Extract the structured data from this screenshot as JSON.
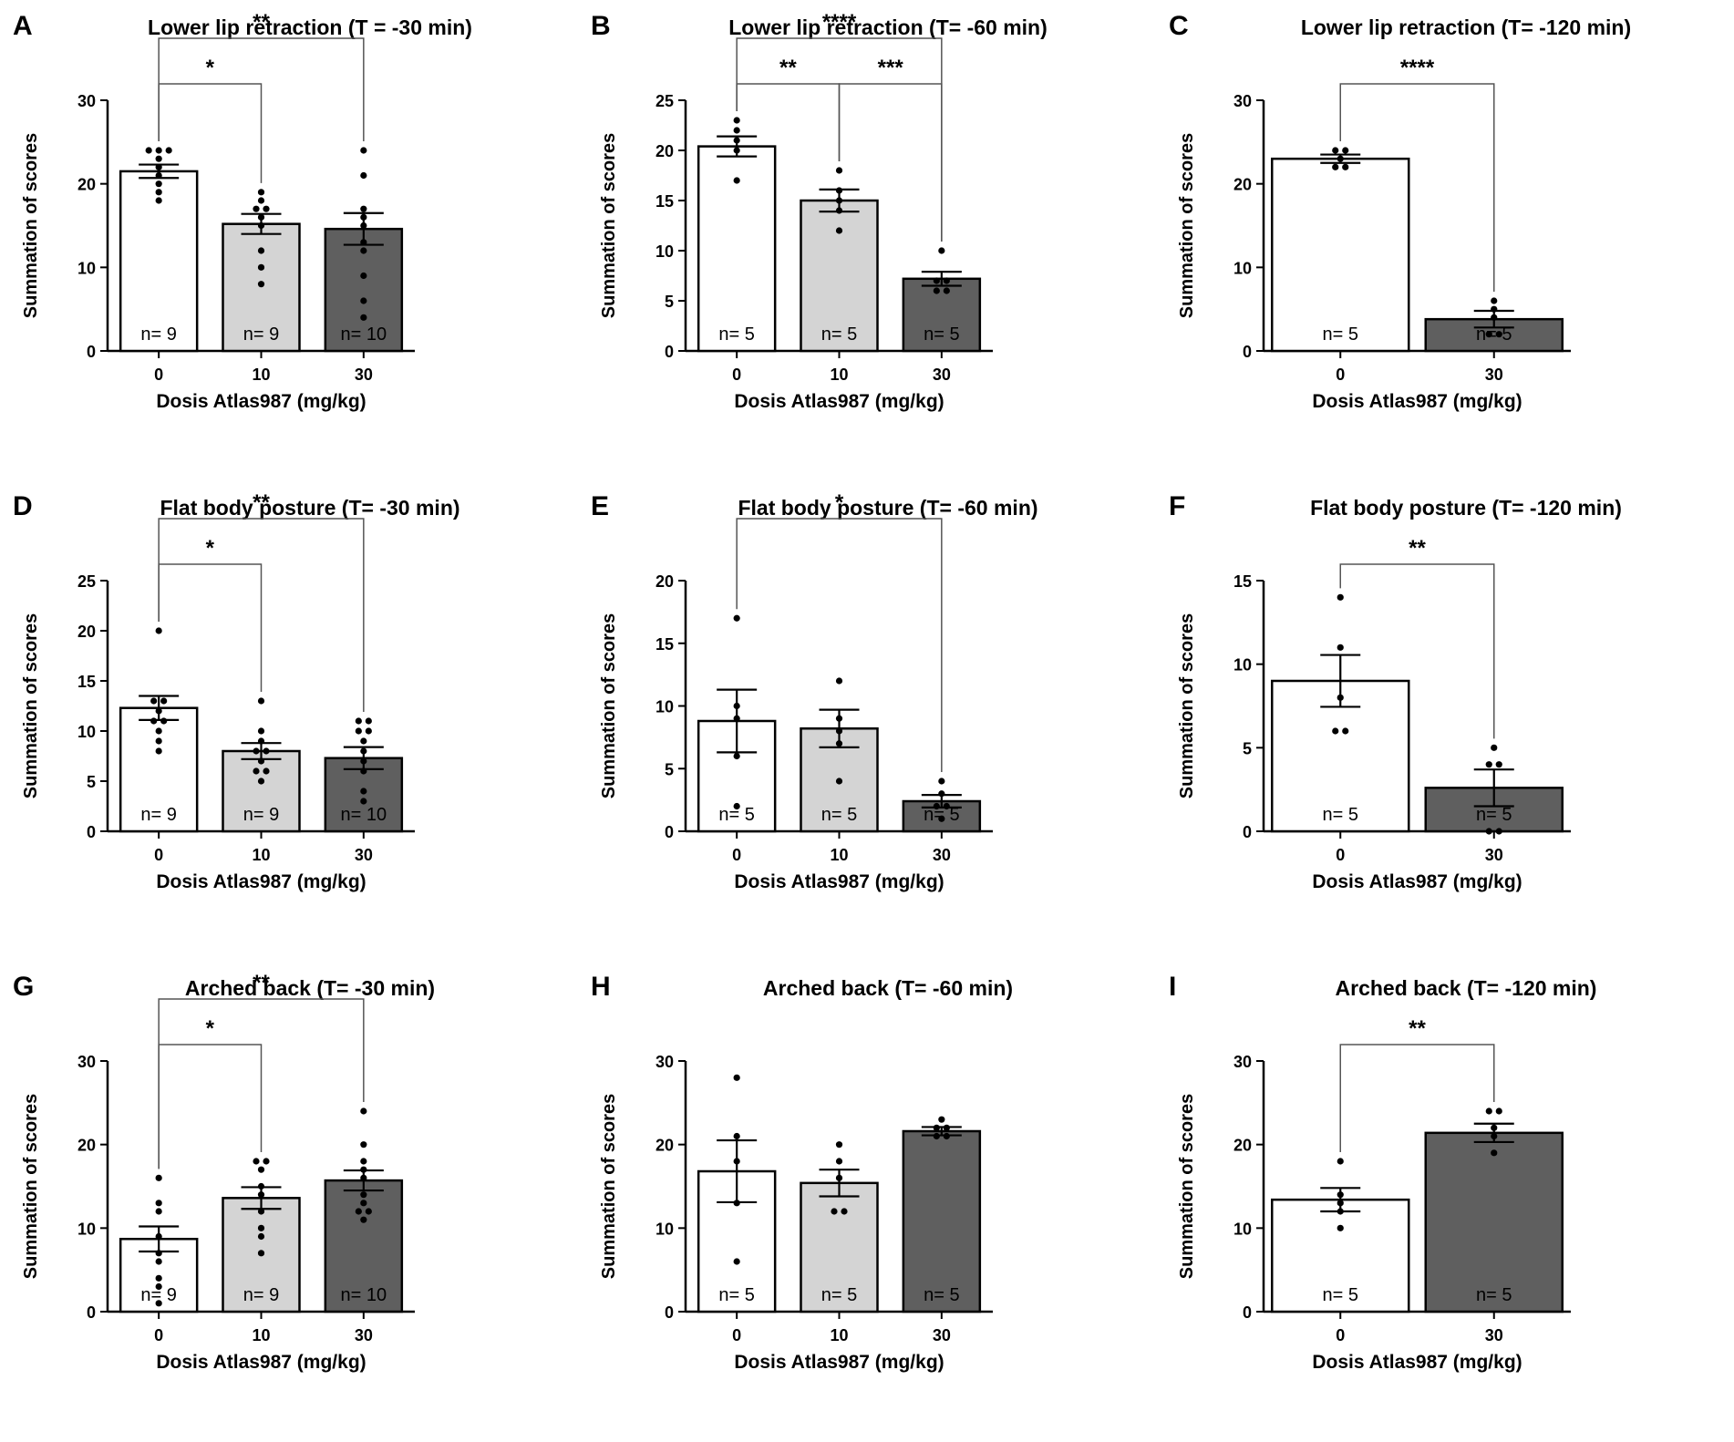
{
  "figure": {
    "colors": {
      "dose_0": "#ffffff",
      "dose_10": "#d4d4d4",
      "dose_30": "#5f5f5f",
      "stroke": "#000000"
    }
  },
  "chart_data": [
    {
      "type": "bar",
      "panel": "A",
      "title": "Lower lip retraction (T = -30 min)",
      "xlabel": "Dosis Atlas987 (mg/kg)",
      "ylabel": "Summation of scores",
      "ylim": [
        0,
        30
      ],
      "yticks": [
        "0",
        "10",
        "20",
        "30"
      ],
      "categories": [
        "0",
        "10",
        "30"
      ],
      "values": [
        21.5,
        15.2,
        14.6
      ],
      "sem": [
        0.8,
        1.2,
        1.9
      ],
      "n_labels": [
        "n= 9",
        "n= 9",
        "n= 10"
      ],
      "points": [
        [
          24,
          24,
          24,
          23,
          22,
          21,
          20,
          19,
          18
        ],
        [
          19,
          18,
          17,
          17,
          16,
          15,
          12,
          10,
          8
        ],
        [
          24,
          21,
          17,
          16,
          15,
          13,
          12,
          9,
          6,
          4
        ]
      ],
      "comparisons": [
        {
          "from": 0,
          "to": 1,
          "label": "*"
        },
        {
          "from": 0,
          "to": 2,
          "label": "**"
        }
      ]
    },
    {
      "type": "bar",
      "panel": "B",
      "title": "Lower lip retraction (T= -60 min)",
      "xlabel": "Dosis Atlas987 (mg/kg)",
      "ylabel": "Summation of scores",
      "ylim": [
        0,
        25
      ],
      "yticks": [
        "0",
        "5",
        "10",
        "15",
        "20",
        "25"
      ],
      "categories": [
        "0",
        "10",
        "30"
      ],
      "values": [
        20.4,
        15.0,
        7.2
      ],
      "sem": [
        1.0,
        1.1,
        0.7
      ],
      "n_labels": [
        "n= 5",
        "n= 5",
        "n= 5"
      ],
      "points": [
        [
          23,
          22,
          21,
          20,
          17
        ],
        [
          18,
          16,
          15,
          14,
          12
        ],
        [
          10,
          7,
          7,
          6,
          6
        ]
      ],
      "comparisons": [
        {
          "from": 0,
          "to": 1,
          "label": "**"
        },
        {
          "from": 1,
          "to": 2,
          "label": "***"
        },
        {
          "from": 0,
          "to": 2,
          "label": "****"
        }
      ]
    },
    {
      "type": "bar",
      "panel": "C",
      "title": "Lower lip retraction (T= -120 min)",
      "xlabel": "Dosis Atlas987 (mg/kg)",
      "ylabel": "Summation of scores",
      "ylim": [
        0,
        30
      ],
      "yticks": [
        "0",
        "10",
        "20",
        "30"
      ],
      "categories": [
        "0",
        "30"
      ],
      "values": [
        23.0,
        3.8
      ],
      "sem": [
        0.5,
        1.0
      ],
      "n_labels": [
        "n= 5",
        "n= 5"
      ],
      "points": [
        [
          24,
          24,
          23,
          22,
          22
        ],
        [
          6,
          5,
          4,
          2,
          2
        ]
      ],
      "comparisons": [
        {
          "from": 0,
          "to": 1,
          "label": "****"
        }
      ]
    },
    {
      "type": "bar",
      "panel": "D",
      "title": "Flat body posture (T= -30 min)",
      "xlabel": "Dosis Atlas987 (mg/kg)",
      "ylabel": "Summation of scores",
      "ylim": [
        0,
        25
      ],
      "yticks": [
        "0",
        "5",
        "10",
        "15",
        "20",
        "25"
      ],
      "categories": [
        "0",
        "10",
        "30"
      ],
      "values": [
        12.3,
        8.0,
        7.3
      ],
      "sem": [
        1.2,
        0.8,
        1.1
      ],
      "n_labels": [
        "n= 9",
        "n= 9",
        "n= 10"
      ],
      "points": [
        [
          20,
          13,
          13,
          12,
          11,
          11,
          10,
          9,
          8
        ],
        [
          13,
          10,
          9,
          8,
          8,
          7,
          6,
          6,
          5
        ],
        [
          11,
          11,
          10,
          10,
          9,
          8,
          7,
          6,
          4,
          3
        ]
      ],
      "comparisons": [
        {
          "from": 0,
          "to": 1,
          "label": "*"
        },
        {
          "from": 0,
          "to": 2,
          "label": "**"
        }
      ]
    },
    {
      "type": "bar",
      "panel": "E",
      "title": "Flat body posture (T= -60 min)",
      "xlabel": "Dosis Atlas987 (mg/kg)",
      "ylabel": "Summation of scores",
      "ylim": [
        0,
        20
      ],
      "yticks": [
        "0",
        "5",
        "10",
        "15",
        "20"
      ],
      "categories": [
        "0",
        "10",
        "30"
      ],
      "values": [
        8.8,
        8.2,
        2.4
      ],
      "sem": [
        2.5,
        1.5,
        0.5
      ],
      "n_labels": [
        "n= 5",
        "n= 5",
        "n= 5"
      ],
      "points": [
        [
          17,
          10,
          9,
          6,
          2
        ],
        [
          12,
          9,
          8,
          7,
          4
        ],
        [
          4,
          3,
          2,
          2,
          1
        ]
      ],
      "comparisons": [
        {
          "from": 0,
          "to": 2,
          "label": "*"
        }
      ]
    },
    {
      "type": "bar",
      "panel": "F",
      "title": "Flat body posture (T= -120 min)",
      "xlabel": "Dosis Atlas987 (mg/kg)",
      "ylabel": "Summation of scores",
      "ylim": [
        0,
        15
      ],
      "yticks": [
        "0",
        "5",
        "10",
        "15"
      ],
      "categories": [
        "0",
        "30"
      ],
      "values": [
        9.0,
        2.6
      ],
      "sem": [
        1.55,
        1.1
      ],
      "n_labels": [
        "n= 5",
        "n= 5"
      ],
      "points": [
        [
          14,
          11,
          8,
          6,
          6
        ],
        [
          5,
          4,
          4,
          0,
          0
        ]
      ],
      "comparisons": [
        {
          "from": 0,
          "to": 1,
          "label": "**"
        }
      ]
    },
    {
      "type": "bar",
      "panel": "G",
      "title": "Arched back (T= -30 min)",
      "xlabel": "Dosis Atlas987 (mg/kg)",
      "ylabel": "Summation of scores",
      "ylim": [
        0,
        30
      ],
      "yticks": [
        "0",
        "10",
        "20",
        "30"
      ],
      "categories": [
        "0",
        "10",
        "30"
      ],
      "values": [
        8.7,
        13.6,
        15.7
      ],
      "sem": [
        1.5,
        1.3,
        1.2
      ],
      "n_labels": [
        "n= 9",
        "n= 9",
        "n= 10"
      ],
      "points": [
        [
          16,
          13,
          12,
          9,
          7,
          6,
          4,
          3,
          1
        ],
        [
          18,
          18,
          17,
          15,
          14,
          12,
          10,
          9,
          7
        ],
        [
          24,
          20,
          18,
          17,
          16,
          14,
          13,
          12,
          12,
          11
        ]
      ],
      "comparisons": [
        {
          "from": 0,
          "to": 1,
          "label": "*"
        },
        {
          "from": 0,
          "to": 2,
          "label": "**"
        }
      ]
    },
    {
      "type": "bar",
      "panel": "H",
      "title": "Arched back (T= -60 min)",
      "xlabel": "Dosis Atlas987 (mg/kg)",
      "ylabel": "Summation of scores",
      "ylim": [
        0,
        30
      ],
      "yticks": [
        "0",
        "10",
        "20",
        "30"
      ],
      "categories": [
        "0",
        "10",
        "30"
      ],
      "values": [
        16.8,
        15.4,
        21.6
      ],
      "sem": [
        3.7,
        1.6,
        0.5
      ],
      "n_labels": [
        "n= 5",
        "n= 5",
        "n= 5"
      ],
      "points": [
        [
          28,
          21,
          18,
          13,
          6
        ],
        [
          20,
          18,
          16,
          12,
          12
        ],
        [
          23,
          22,
          22,
          21,
          21
        ]
      ],
      "comparisons": []
    },
    {
      "type": "bar",
      "panel": "I",
      "title": "Arched back (T= -120 min)",
      "xlabel": "Dosis Atlas987 (mg/kg)",
      "ylabel": "Summation of scores",
      "ylim": [
        0,
        30
      ],
      "yticks": [
        "0",
        "10",
        "20",
        "30"
      ],
      "categories": [
        "0",
        "30"
      ],
      "values": [
        13.4,
        21.4
      ],
      "sem": [
        1.4,
        1.1
      ],
      "n_labels": [
        "n= 5",
        "n= 5"
      ],
      "points": [
        [
          18,
          14,
          13,
          12,
          10
        ],
        [
          24,
          24,
          22,
          21,
          19
        ]
      ],
      "comparisons": [
        {
          "from": 0,
          "to": 1,
          "label": "**"
        }
      ]
    }
  ]
}
